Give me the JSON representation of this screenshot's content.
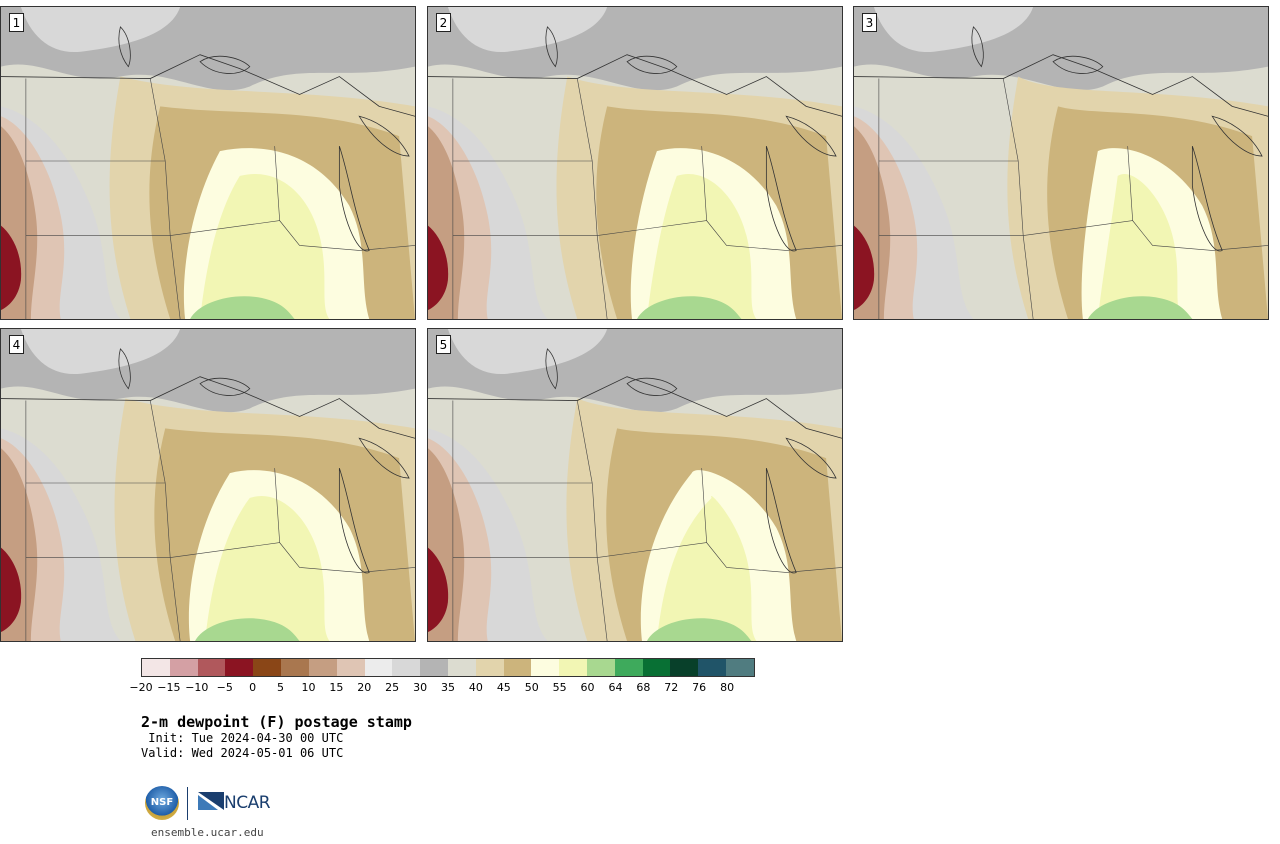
{
  "panels": [
    {
      "label": "1",
      "variant": 0
    },
    {
      "label": "2",
      "variant": 1
    },
    {
      "label": "3",
      "variant": 2
    },
    {
      "label": "4",
      "variant": 3
    },
    {
      "label": "5",
      "variant": 4
    }
  ],
  "colorbar": {
    "colors": [
      "#f3e6e6",
      "#d4a0a4",
      "#b0585c",
      "#8b1422",
      "#8a4617",
      "#a9774f",
      "#c59e82",
      "#dfc5b4",
      "#ececec",
      "#d8d8d8",
      "#b4b4b4",
      "#dcdcd0",
      "#e2d4ac",
      "#ccb47c",
      "#fdfde0",
      "#f2f6b4",
      "#a8d890",
      "#3eaa5c",
      "#087034",
      "#08402a",
      "#205468",
      "#507c80"
    ],
    "ticks": [
      "−20",
      "−15",
      "−10",
      "−5",
      "0",
      "5",
      "10",
      "15",
      "20",
      "25",
      "30",
      "35",
      "40",
      "45",
      "50",
      "55",
      "60",
      "64",
      "68",
      "72",
      "76",
      "80"
    ]
  },
  "title": "2-m dewpoint (F) postage stamp",
  "init": " Init: Tue 2024-04-30 00 UTC",
  "valid": "Valid: Wed 2024-05-01 06 UTC",
  "logo": {
    "nsf": "NSF",
    "ncar": "NCAR"
  },
  "url": "ensemble.ucar.edu"
}
